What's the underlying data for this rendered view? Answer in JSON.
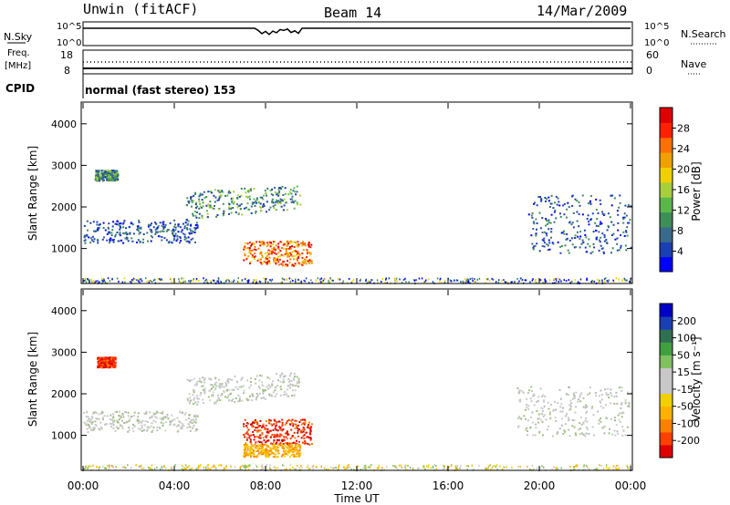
{
  "header": {
    "station": "Unwin (fitACF)",
    "beam": "Beam 14",
    "date": "14/Mar/2009"
  },
  "top_panels": {
    "nsky_label": "N.Sky",
    "nsearch_label": "N.Search",
    "nsky_ticks": [
      "10^5",
      "10^0"
    ],
    "freq_label": "Freq.",
    "freq_unit": "[MHz]",
    "freq_ticks": [
      "18",
      "8"
    ],
    "nave_label": "Nave",
    "nave_ticks": [
      "60",
      "0"
    ],
    "cpid_label": "CPID",
    "cpid_text": "normal (fast stereo) 153"
  },
  "chart_data": [
    {
      "type": "heatmap",
      "name": "power",
      "ylabel": "Slant Range [km]",
      "xlabel": "",
      "yticks": [
        "1000",
        "2000",
        "3000",
        "4000"
      ],
      "ylim": [
        180,
        4500
      ],
      "xlim": [
        0,
        24
      ],
      "colorbar": {
        "label": "Power [dB]",
        "ticks": [
          "4",
          "8",
          "12",
          "16",
          "20",
          "24",
          "28"
        ],
        "colors": [
          "#0000ff",
          "#1a3fb4",
          "#3a6a8a",
          "#3e8e5a",
          "#5ab84a",
          "#a7cf3a",
          "#f0d000",
          "#f0a000",
          "#ff7000",
          "#ff2000",
          "#e00000"
        ]
      },
      "regions": [
        {
          "t0": 0.0,
          "t1": 5.0,
          "r0": 1150,
          "r1": 1700,
          "level": "low"
        },
        {
          "t0": 4.5,
          "t1": 9.5,
          "r0": 1700,
          "r1": 2400,
          "level": "mid"
        },
        {
          "t0": 0.5,
          "t1": 1.5,
          "r0": 2650,
          "r1": 2900,
          "level": "mid"
        },
        {
          "t0": 7.0,
          "t1": 10.0,
          "r0": 600,
          "r1": 1200,
          "level": "high"
        },
        {
          "t0": 19.5,
          "t1": 24.0,
          "r0": 900,
          "r1": 2300,
          "level": "low"
        }
      ]
    },
    {
      "type": "heatmap",
      "name": "velocity",
      "ylabel": "Slant Range [km]",
      "xlabel": "Time UT",
      "yticks": [
        "1000",
        "2000",
        "3000",
        "4000"
      ],
      "ylim": [
        180,
        4500
      ],
      "xlim": [
        0,
        24
      ],
      "xticks": [
        "00:00",
        "04:00",
        "08:00",
        "12:00",
        "16:00",
        "20:00",
        "00:00"
      ],
      "colorbar": {
        "label": "Velocity [m s⁻¹]",
        "ticks": [
          "-200",
          "-100",
          "-50",
          "-15",
          "15",
          "50",
          "100",
          "200"
        ],
        "colors": [
          "#e00000",
          "#ff4000",
          "#ff8000",
          "#ffb000",
          "#f0d000",
          "#c8c8c8",
          "#c8c8c8",
          "#80c060",
          "#40a040",
          "#307050",
          "#1a3fb4",
          "#0000c8"
        ]
      },
      "regions": [
        {
          "t0": 0.0,
          "t1": 5.0,
          "r0": 1100,
          "r1": 1600,
          "level": "gray"
        },
        {
          "t0": 4.5,
          "t1": 9.5,
          "r0": 1700,
          "r1": 2400,
          "level": "gray"
        },
        {
          "t0": 0.6,
          "t1": 1.4,
          "r0": 2650,
          "r1": 2900,
          "level": "red"
        },
        {
          "t0": 7.0,
          "t1": 10.0,
          "r0": 800,
          "r1": 1400,
          "level": "red"
        },
        {
          "t0": 7.0,
          "t1": 9.5,
          "r0": 500,
          "r1": 800,
          "level": "orange"
        },
        {
          "t0": 19.0,
          "t1": 24.0,
          "r0": 1000,
          "r1": 2200,
          "level": "gray"
        }
      ]
    }
  ]
}
